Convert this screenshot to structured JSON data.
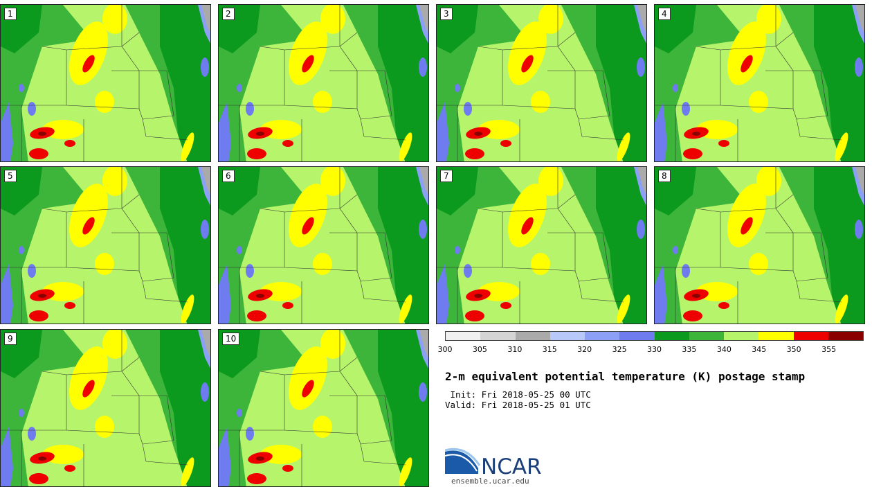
{
  "panels": [
    {
      "label": "1"
    },
    {
      "label": "2"
    },
    {
      "label": "3"
    },
    {
      "label": "4"
    },
    {
      "label": "5"
    },
    {
      "label": "6"
    },
    {
      "label": "7"
    },
    {
      "label": "8"
    },
    {
      "label": "9"
    },
    {
      "label": "10"
    }
  ],
  "colorbar": {
    "colors": [
      "#f0f0f0",
      "#d4d4d4",
      "#aaaaaa",
      "#b8c8f8",
      "#8ca0f5",
      "#6e7cf0",
      "#0c9a1e",
      "#3cb53a",
      "#b6f56b",
      "#ffff00",
      "#ee0000",
      "#8a0000"
    ],
    "ticks": [
      "300",
      "305",
      "310",
      "315",
      "320",
      "325",
      "330",
      "335",
      "340",
      "345",
      "350",
      "355"
    ]
  },
  "title": "2-m equivalent potential temperature (K) postage stamp",
  "init": " Init: Fri 2018-05-25 00 UTC",
  "valid": "Valid: Fri 2018-05-25 01 UTC",
  "logo": {
    "text": "NCAR",
    "url": "ensemble.ucar.edu"
  }
}
